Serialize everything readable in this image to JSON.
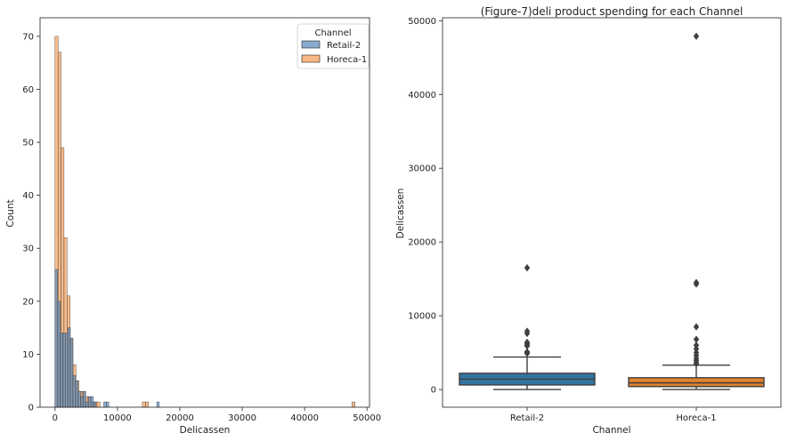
{
  "chart_data": [
    {
      "type": "histogram",
      "xlabel": "Delicassen",
      "ylabel": "Count",
      "xlim": [
        -2400,
        50400
      ],
      "ylim": [
        0,
        73.5
      ],
      "xticks": [
        0,
        10000,
        20000,
        30000,
        40000,
        50000
      ],
      "yticks": [
        0,
        10,
        20,
        30,
        40,
        50,
        60,
        70
      ],
      "legend": {
        "title": "Channel",
        "placement": "top-right",
        "entries": [
          "Retail-2",
          "Horeca-1"
        ]
      },
      "series": [
        {
          "name": "Horeca-1",
          "color": "#f5a25f",
          "bin_width": 480,
          "bins_start": [
            0,
            480,
            960,
            1440,
            1920,
            2400,
            2880,
            3360,
            3840,
            4320,
            4800,
            5280,
            5760,
            6240,
            6720,
            7200,
            14000,
            14480,
            47600
          ],
          "values": [
            70,
            67,
            49,
            32,
            21,
            13,
            8,
            5,
            3,
            3,
            2,
            2,
            1,
            1,
            1,
            0,
            1,
            1,
            1
          ]
        },
        {
          "name": "Retail-2",
          "color": "#5f8fbc",
          "bin_width": 410,
          "bins_start": [
            0,
            410,
            820,
            1230,
            1640,
            2050,
            2460,
            2870,
            3280,
            3690,
            4100,
            4510,
            4920,
            5330,
            5740,
            6150,
            7800,
            8200,
            16300
          ],
          "values": [
            26,
            20,
            14,
            14,
            14,
            15,
            13,
            6,
            5,
            3,
            2,
            3,
            1,
            2,
            2,
            1,
            1,
            1,
            1
          ]
        }
      ]
    },
    {
      "type": "box",
      "title": "(Figure-7)deli product spending for each Channel",
      "xlabel": "Channel",
      "ylabel": "Delicassen",
      "categories": [
        "Retail-2",
        "Horeca-1"
      ],
      "ylim": [
        -2400,
        50400
      ],
      "yticks": [
        0,
        10000,
        20000,
        30000,
        40000,
        50000
      ],
      "boxes": [
        {
          "name": "Retail-2",
          "color": "#3274a1",
          "q1": 620,
          "median": 1400,
          "q3": 2200,
          "whisker_low": 0,
          "whisker_high": 4400,
          "outliers": [
            16500,
            7900,
            7600,
            6400,
            6200,
            6000,
            5900,
            5100,
            5000,
            4900
          ]
        },
        {
          "name": "Horeca-1",
          "color": "#e1812c",
          "q1": 400,
          "median": 900,
          "q3": 1600,
          "whisker_low": 0,
          "whisker_high": 3300,
          "outliers": [
            47900,
            14500,
            14300,
            8500,
            6800,
            6000,
            5500,
            5000,
            4600,
            4200,
            3900,
            3600,
            3500
          ]
        }
      ]
    }
  ]
}
